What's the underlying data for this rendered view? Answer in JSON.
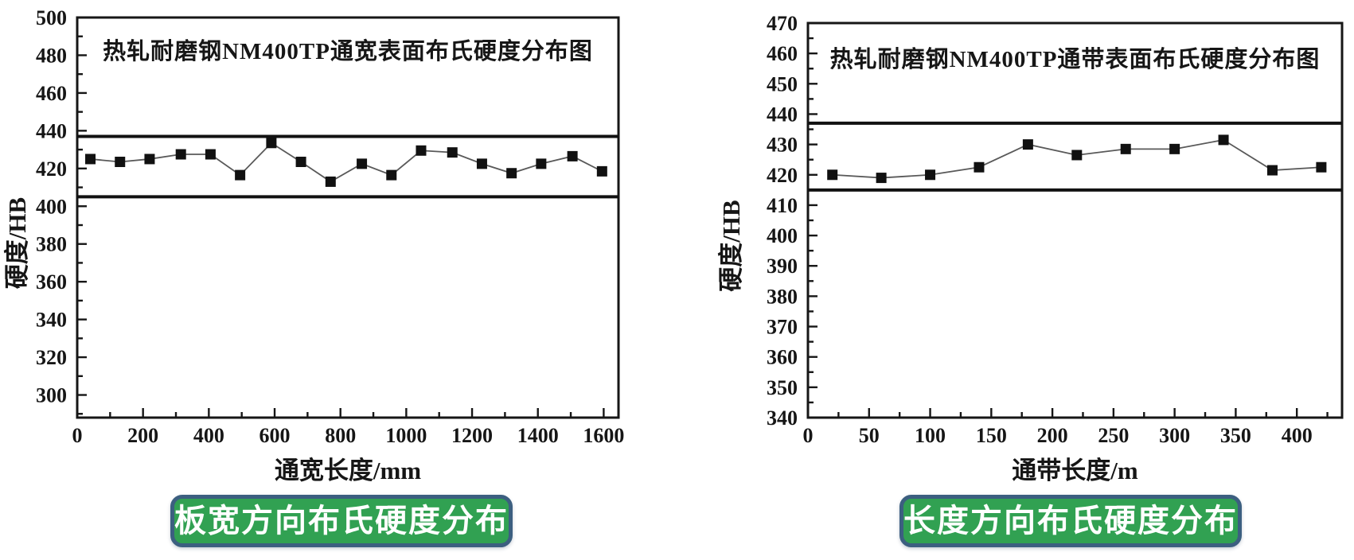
{
  "figure": {
    "background": "#ffffff",
    "description_visible_text_only": true
  },
  "colors": {
    "ink": "#161616",
    "series_line": "#595959",
    "marker": "#111111",
    "limit_line": "#111111",
    "caption_bg": "#31a152",
    "caption_border": "#3c5f80",
    "caption_text": "#ffffff"
  },
  "chart_data": [
    {
      "type": "line",
      "title": "热轧耐磨钢NM400TP通宽表面布氏硬度分布图",
      "xlabel": "通宽长度/mm",
      "ylabel": "硬度/HB",
      "x": [
        40,
        130,
        220,
        315,
        405,
        495,
        590,
        680,
        770,
        865,
        955,
        1045,
        1140,
        1230,
        1320,
        1410,
        1505,
        1595
      ],
      "y": [
        425,
        423.5,
        425,
        427.5,
        427.5,
        416.5,
        433.5,
        423.5,
        413,
        422.5,
        416.5,
        429.5,
        428.5,
        422.5,
        417.5,
        422.5,
        426.5,
        418.5
      ],
      "upper_limit": 437,
      "lower_limit": 405,
      "xlim": [
        0,
        1645
      ],
      "ylim": [
        288,
        500
      ],
      "xtick_step": 200,
      "xminor_step": 100,
      "xtick_max": 1600,
      "ytick_min": 300,
      "ytick_step": 20,
      "yminor_step": 10,
      "grid": false,
      "legend": "none",
      "marker": "square",
      "caption": "板宽方向布氏硬度分布"
    },
    {
      "type": "line",
      "title": "热轧耐磨钢NM400TP通带表面布氏硬度分布图",
      "xlabel": "通带长度/m",
      "ylabel": "硬度/HB",
      "x": [
        20,
        60,
        100,
        140,
        180,
        220,
        260,
        300,
        340,
        380,
        420
      ],
      "y": [
        420,
        419,
        420,
        422.5,
        430,
        426.5,
        428.5,
        428.5,
        431.5,
        421.5,
        422.5
      ],
      "upper_limit": 437,
      "lower_limit": 415,
      "xlim": [
        0,
        437
      ],
      "ylim": [
        340,
        470
      ],
      "xtick_step": 50,
      "xminor_step": 25,
      "xtick_max": 400,
      "ytick_min": 340,
      "ytick_step": 10,
      "yminor_step": 5,
      "grid": false,
      "legend": "none",
      "marker": "square",
      "caption": "长度方向布氏硬度分布"
    }
  ]
}
